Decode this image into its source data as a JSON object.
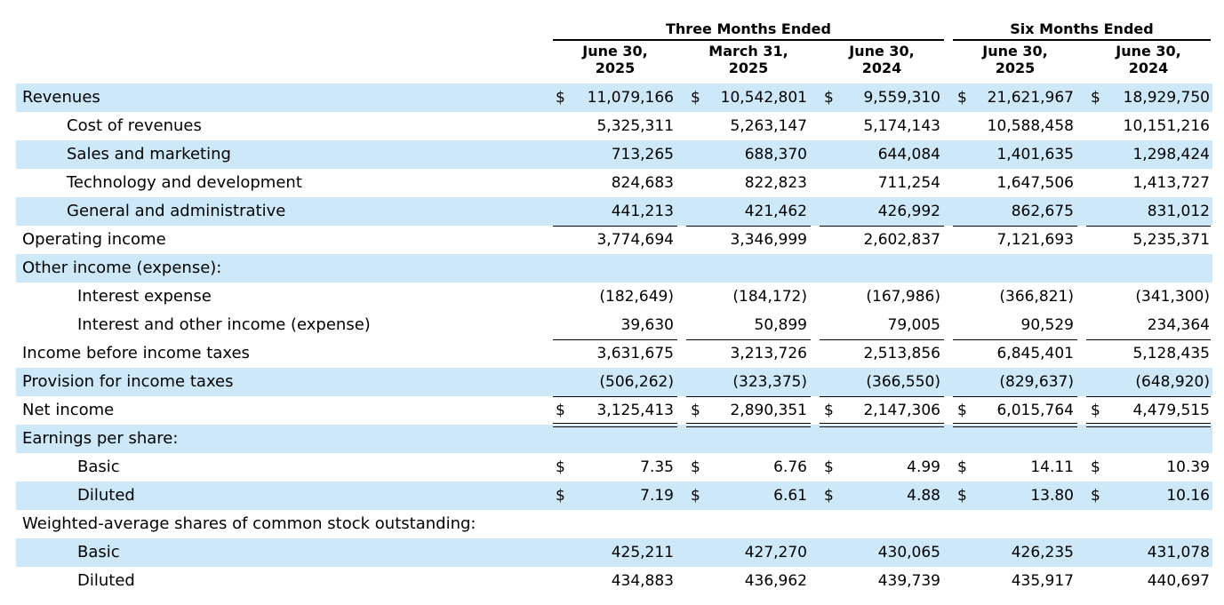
{
  "groups": {
    "three_months": "Three Months Ended",
    "six_months": "Six Months Ended"
  },
  "columns": [
    {
      "line1": "June 30,",
      "line2": "2025"
    },
    {
      "line1": "March 31,",
      "line2": "2025"
    },
    {
      "line1": "June 30,",
      "line2": "2024"
    },
    {
      "line1": "June 30,",
      "line2": "2025"
    },
    {
      "line1": "June 30,",
      "line2": "2024"
    }
  ],
  "currency_symbol": "$",
  "rows": [
    {
      "label": "Revenues",
      "values": [
        "11,079,166",
        "10,542,801",
        "9,559,310",
        "21,621,967",
        "18,929,750"
      ]
    },
    {
      "label": "Cost of revenues",
      "values": [
        "5,325,311",
        "5,263,147",
        "5,174,143",
        "10,588,458",
        "10,151,216"
      ]
    },
    {
      "label": "Sales and marketing",
      "values": [
        "713,265",
        "688,370",
        "644,084",
        "1,401,635",
        "1,298,424"
      ]
    },
    {
      "label": "Technology and development",
      "values": [
        "824,683",
        "822,823",
        "711,254",
        "1,647,506",
        "1,413,727"
      ]
    },
    {
      "label": "General and administrative",
      "values": [
        "441,213",
        "421,462",
        "426,992",
        "862,675",
        "831,012"
      ]
    },
    {
      "label": "Operating income",
      "values": [
        "3,774,694",
        "3,346,999",
        "2,602,837",
        "7,121,693",
        "5,235,371"
      ]
    },
    {
      "label": "Other income (expense):",
      "values": [
        "",
        "",
        "",
        "",
        ""
      ]
    },
    {
      "label": "Interest expense",
      "values": [
        "(182,649)",
        "(184,172)",
        "(167,986)",
        "(366,821)",
        "(341,300)"
      ]
    },
    {
      "label": "Interest and other income (expense)",
      "values": [
        "39,630",
        "50,899",
        "79,005",
        "90,529",
        "234,364"
      ]
    },
    {
      "label": "Income before income taxes",
      "values": [
        "3,631,675",
        "3,213,726",
        "2,513,856",
        "6,845,401",
        "5,128,435"
      ]
    },
    {
      "label": "Provision for income taxes",
      "values": [
        "(506,262)",
        "(323,375)",
        "(366,550)",
        "(829,637)",
        "(648,920)"
      ]
    },
    {
      "label": "Net income",
      "values": [
        "3,125,413",
        "2,890,351",
        "2,147,306",
        "6,015,764",
        "4,479,515"
      ]
    },
    {
      "label": "Earnings per share:",
      "values": [
        "",
        "",
        "",
        "",
        ""
      ]
    },
    {
      "label": "Basic",
      "values": [
        "7.35",
        "6.76",
        "4.99",
        "14.11",
        "10.39"
      ]
    },
    {
      "label": "Diluted",
      "values": [
        "7.19",
        "6.61",
        "4.88",
        "13.80",
        "10.16"
      ]
    },
    {
      "label": "Weighted-average shares of common stock outstanding:",
      "values": [
        "",
        "",
        "",
        "",
        ""
      ]
    },
    {
      "label": "Basic",
      "values": [
        "425,211",
        "427,270",
        "430,065",
        "426,235",
        "431,078"
      ]
    },
    {
      "label": "Diluted",
      "values": [
        "434,883",
        "436,962",
        "439,739",
        "435,917",
        "440,697"
      ]
    }
  ]
}
